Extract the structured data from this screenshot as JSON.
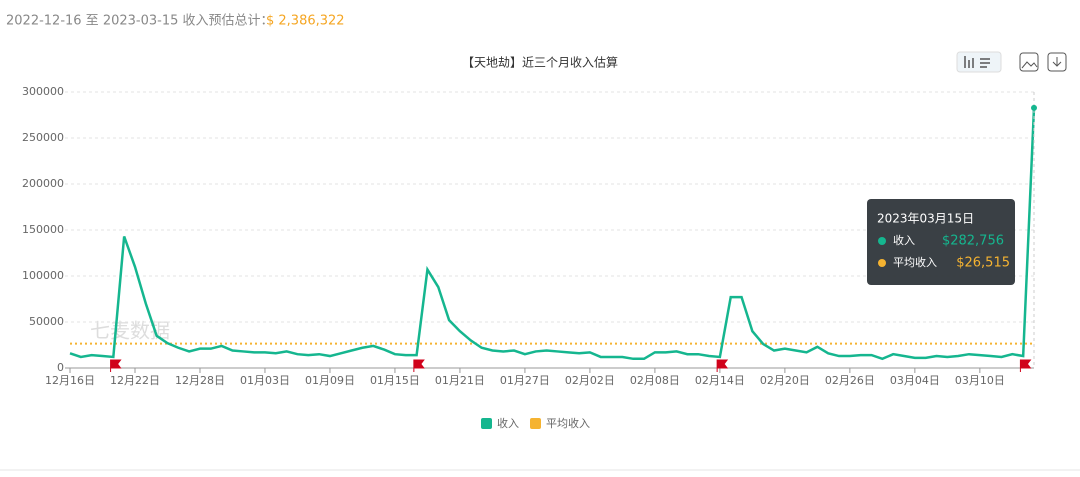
{
  "header": {
    "range": "2022-12-16 至 2023-03-15 收入预估总计：",
    "total": "$ 2,386,322"
  },
  "chart_data": {
    "type": "line",
    "title": "【天地劫】近三个月收入估算",
    "watermark": "七麦数据",
    "categories": [
      "12月16日",
      null,
      null,
      null,
      null,
      null,
      "12月22日",
      null,
      null,
      null,
      null,
      null,
      "12月28日",
      null,
      null,
      null,
      null,
      null,
      "01月03日",
      null,
      null,
      null,
      null,
      null,
      "01月09日",
      null,
      null,
      null,
      null,
      null,
      "01月15日",
      null,
      null,
      null,
      null,
      null,
      "01月21日",
      null,
      null,
      null,
      null,
      null,
      "01月27日",
      null,
      null,
      null,
      null,
      null,
      "02月02日",
      null,
      null,
      null,
      null,
      null,
      "02月08日",
      null,
      null,
      null,
      null,
      null,
      "02月14日",
      null,
      null,
      null,
      null,
      null,
      "02月20日",
      null,
      null,
      null,
      null,
      null,
      "02月26日",
      null,
      null,
      null,
      null,
      null,
      "03月04日",
      null,
      null,
      null,
      null,
      null,
      "03月10日",
      null,
      null,
      null,
      null,
      null
    ],
    "series": [
      {
        "name": "收入",
        "color": "#15b68f",
        "values": [
          16000,
          12000,
          14000,
          13000,
          12000,
          143000,
          110000,
          70000,
          35000,
          27000,
          22000,
          18000,
          21000,
          21000,
          24000,
          19000,
          18000,
          17000,
          17000,
          16000,
          18000,
          15000,
          14000,
          15000,
          13000,
          16000,
          19000,
          22000,
          24000,
          20000,
          15000,
          14000,
          14000,
          107000,
          88000,
          52000,
          40000,
          30000,
          22000,
          19000,
          18000,
          19000,
          15000,
          18000,
          19000,
          18000,
          17000,
          16000,
          17000,
          12000,
          12000,
          12000,
          10000,
          10000,
          17000,
          17000,
          18000,
          15000,
          15000,
          13000,
          12000,
          77000,
          77000,
          40000,
          26000,
          19000,
          21000,
          19000,
          17000,
          23000,
          16000,
          13000,
          13000,
          14000,
          14000,
          10000,
          15000,
          13000,
          11000,
          11000,
          13000,
          12000,
          13000,
          15000,
          14000,
          13000,
          12000,
          15000,
          13000,
          282756
        ]
      },
      {
        "name": "平均收入",
        "color": "#f5b331",
        "value": 26515
      }
    ],
    "ylim": [
      0,
      300000
    ],
    "yticks": [
      0,
      50000,
      100000,
      150000,
      200000,
      250000,
      300000
    ],
    "grid": true,
    "tooltip": {
      "title": "2023年03月15日",
      "value_labels": [
        "$282,756",
        "$26,515"
      ]
    }
  }
}
